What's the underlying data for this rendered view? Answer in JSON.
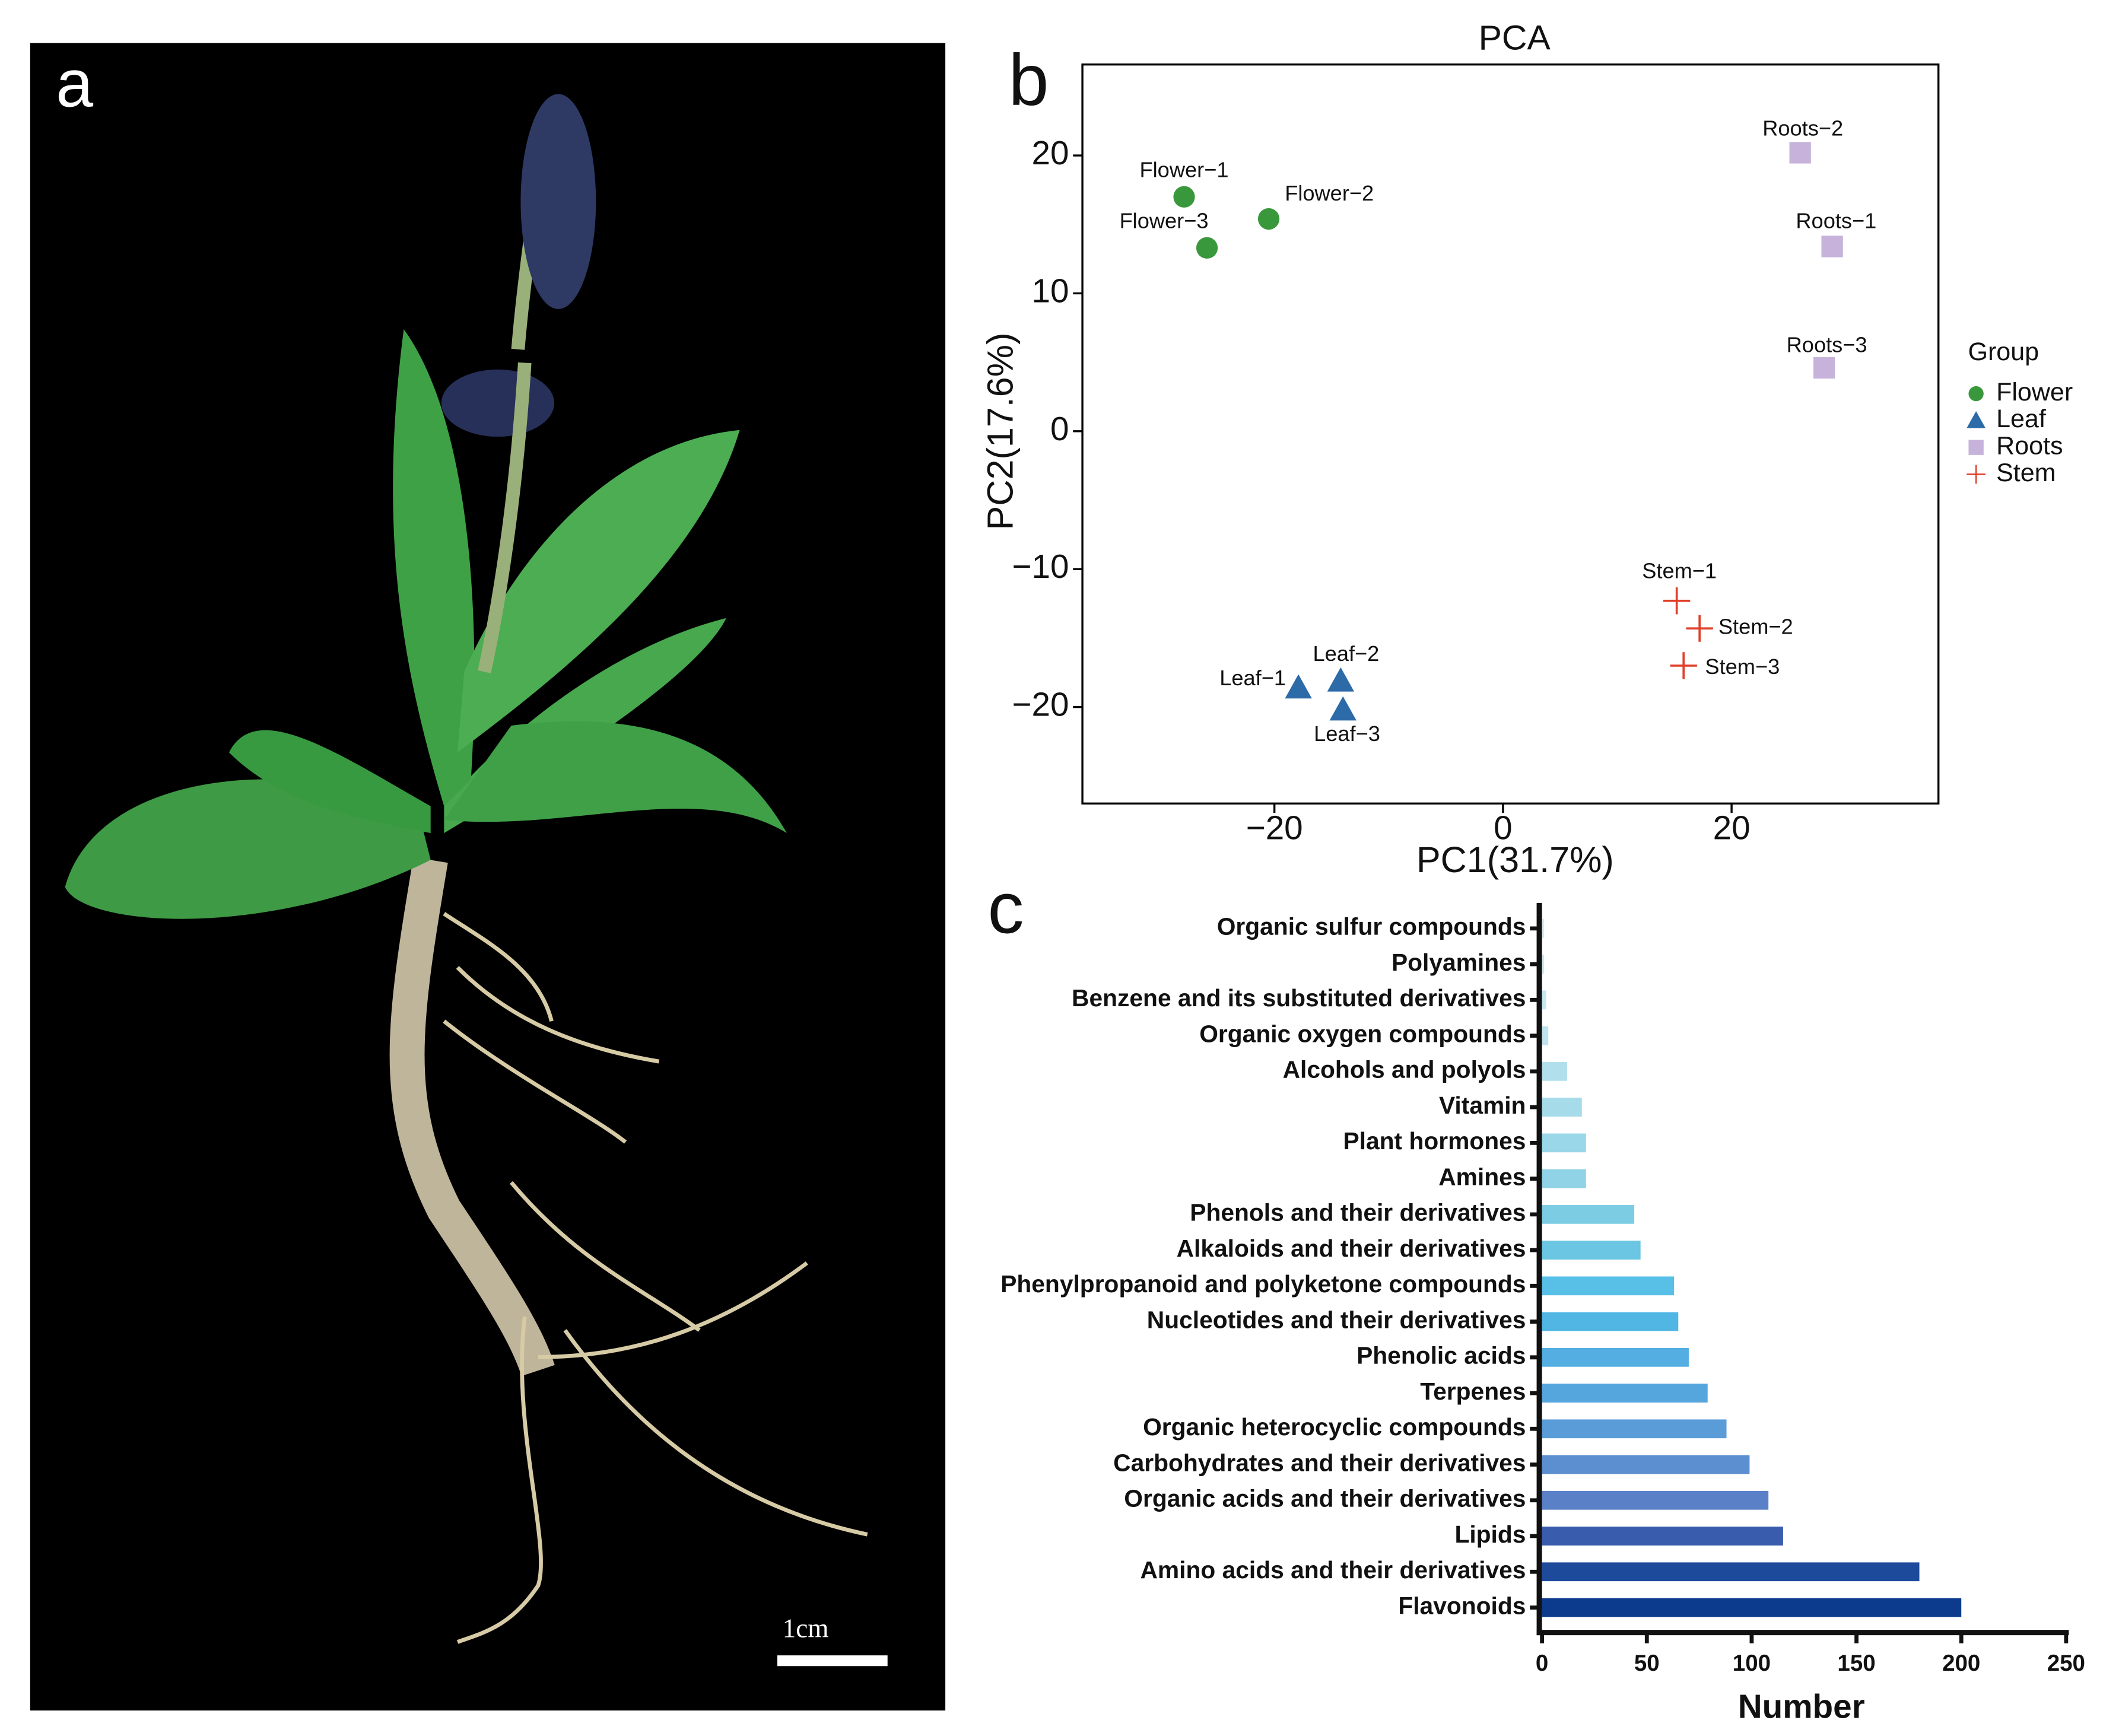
{
  "photo": {
    "label": "a",
    "scale_bar": "1cm"
  },
  "chart_data": [
    {
      "type": "scatter",
      "panel_label": "b",
      "title": "PCA",
      "xlabel": "PC1(31.7%)",
      "ylabel": "PC2(17.6%)",
      "xlim": [
        -36.8,
        38.1
      ],
      "ylim": [
        -27.0,
        26.6
      ],
      "xticks": [
        {
          "value": -20,
          "label": "−20"
        },
        0,
        20
      ],
      "yticks": [
        {
          "value": -20,
          "label": "−20"
        },
        {
          "value": -10,
          "label": "−10"
        },
        0,
        10,
        20
      ],
      "legend_title": "Group",
      "legend": "right",
      "series": [
        {
          "name": "Flower",
          "color": "#3a983c",
          "marker": "circle",
          "x": [
            -27.9,
            -20.5,
            -25.9
          ],
          "values": [
            17.0,
            15.4,
            13.3
          ],
          "labels": [
            "Flower−1",
            "Flower−2",
            "Flower−3"
          ]
        },
        {
          "name": "Leaf",
          "color": "#2c6aa8",
          "marker": "triangle",
          "x": [
            -17.9,
            -14.2,
            -14.0
          ],
          "values": [
            -18.6,
            -18.1,
            -20.2
          ],
          "labels": [
            "Leaf−1",
            "Leaf−2",
            "Leaf−3"
          ]
        },
        {
          "name": "Roots",
          "color": "#c6b2da",
          "marker": "square",
          "x": [
            28.8,
            26.0,
            28.1
          ],
          "values": [
            13.4,
            20.2,
            4.6
          ],
          "labels": [
            "Roots−1",
            "Roots−2",
            "Roots−3"
          ]
        },
        {
          "name": "Stem",
          "color": "#e0402a",
          "marker": "plus",
          "x": [
            15.2,
            17.2,
            15.8
          ],
          "values": [
            -12.3,
            -14.3,
            -17.0
          ],
          "labels": [
            "Stem−1",
            "Stem−2",
            "Stem−3"
          ]
        }
      ]
    },
    {
      "type": "bar",
      "orientation": "horizontal",
      "panel_label": "c",
      "xlabel": "Number",
      "xlim": [
        0,
        250
      ],
      "xticks": [
        0,
        50,
        100,
        150,
        200,
        250
      ],
      "categories": [
        "Organic sulfur compounds",
        "Polyamines",
        "Benzene and its substituted derivatives",
        "Organic oxygen compounds",
        "Alcohols and polyols",
        "Vitamin",
        "Plant hormones",
        "Amines",
        "Phenols and their derivatives",
        "Alkaloids and their derivatives",
        "Phenylpropanoid and polyketone compounds",
        "Nucleotides and their derivatives",
        "Phenolic acids",
        "Terpenes",
        "Organic heterocyclic compounds",
        "Carbohydrates and their derivatives",
        "Organic acids and their derivatives",
        "Lipids",
        "Amino acids and their derivatives",
        "Flavonoids"
      ],
      "values": [
        1,
        1,
        2,
        3,
        12,
        19,
        21,
        21,
        44,
        47,
        63,
        65,
        70,
        79,
        88,
        99,
        108,
        115,
        180,
        200
      ],
      "colors": [
        "#d4ecf2",
        "#cde9f1",
        "#c6e6f0",
        "#bfe3ee",
        "#b2dfec",
        "#a6dbea",
        "#9ad7e8",
        "#90d3e6",
        "#7ccde3",
        "#6ac6e2",
        "#58bfe6",
        "#52b6e4",
        "#54aee2",
        "#56a6de",
        "#5a9cd8",
        "#5c8fd0",
        "#5a80c8",
        "#3a5cac",
        "#1e4a9c",
        "#0c3a8c"
      ]
    }
  ]
}
